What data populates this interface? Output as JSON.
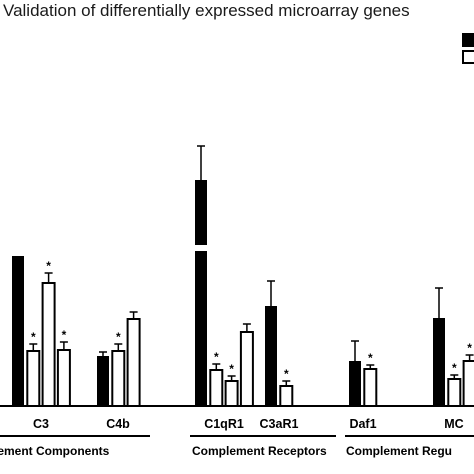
{
  "chart_data": {
    "type": "bar",
    "title": "Validation of differentially expressed microarray genes",
    "categories": [
      "C3",
      "C4b",
      "C1qR1",
      "C3aR1",
      "Daf1",
      "MC"
    ],
    "groups": [
      {
        "label": "lement Components",
        "categories": [
          "C3",
          "C4b"
        ]
      },
      {
        "label": "Complement Receptors",
        "categories": [
          "C1qR1",
          "C3aR1"
        ]
      },
      {
        "label": "Complement Regu",
        "categories": [
          "Daf1",
          "MC"
        ]
      }
    ],
    "series": [
      {
        "color": "#000000",
        "fill": "solid",
        "values": [
          1.5,
          0.5,
          2.85,
          1.0,
          0.45,
          0.88
        ],
        "errors": [
          0.42,
          0.04,
          0.34,
          0.25,
          0.2,
          0.3
        ]
      },
      {
        "color": "#000000",
        "fill": "open",
        "values": [
          0.55,
          0.55,
          0.36,
          0.2,
          0.37,
          0.27
        ],
        "errors": [
          0.07,
          0.07,
          0.06,
          0.05,
          0.04,
          0.04
        ],
        "stars": [
          true,
          true,
          true,
          true,
          true,
          true
        ]
      },
      {
        "color": "#000000",
        "fill": "open",
        "values": [
          1.23,
          0.87,
          0.25,
          null,
          null,
          0.45
        ],
        "errors": [
          0.1,
          0.07,
          0.05,
          null,
          null,
          0.06
        ],
        "stars": [
          true,
          false,
          true,
          false,
          false,
          true
        ]
      },
      {
        "color": "#000000",
        "fill": "open",
        "values": [
          0.56,
          null,
          0.74,
          null,
          null,
          null
        ],
        "errors": [
          0.08,
          null,
          0.08,
          null,
          null,
          null
        ],
        "stars": [
          true,
          false,
          false,
          false,
          false,
          false
        ]
      }
    ],
    "axis_break": {
      "from": 1.55,
      "to": 2.2
    },
    "legend": "top-right"
  }
}
